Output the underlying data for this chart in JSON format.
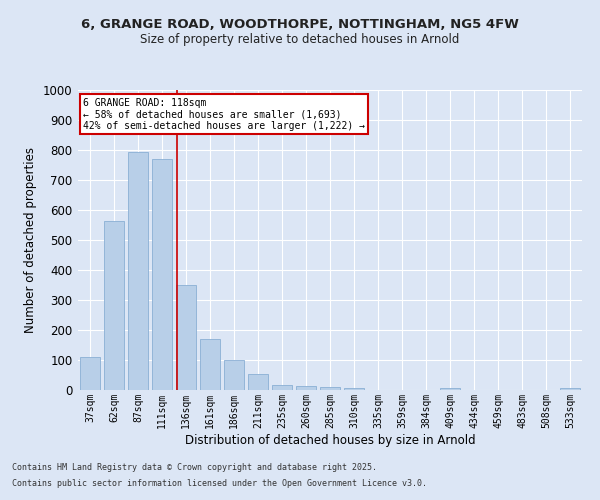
{
  "title1": "6, GRANGE ROAD, WOODTHORPE, NOTTINGHAM, NG5 4FW",
  "title2": "Size of property relative to detached houses in Arnold",
  "xlabel": "Distribution of detached houses by size in Arnold",
  "ylabel": "Number of detached properties",
  "categories": [
    "37sqm",
    "62sqm",
    "87sqm",
    "111sqm",
    "136sqm",
    "161sqm",
    "186sqm",
    "211sqm",
    "235sqm",
    "260sqm",
    "285sqm",
    "310sqm",
    "335sqm",
    "359sqm",
    "384sqm",
    "409sqm",
    "434sqm",
    "459sqm",
    "483sqm",
    "508sqm",
    "533sqm"
  ],
  "values": [
    110,
    565,
    795,
    770,
    350,
    170,
    100,
    55,
    18,
    13,
    10,
    8,
    0,
    0,
    0,
    8,
    0,
    0,
    0,
    0,
    8
  ],
  "bar_color": "#b8cfe8",
  "bar_edge_color": "#8aafd4",
  "background_color": "#dce6f5",
  "plot_bg_color": "#dce6f5",
  "grid_color": "#ffffff",
  "red_line_x": 3.62,
  "annotation_title": "6 GRANGE ROAD: 118sqm",
  "annotation_line1": "← 58% of detached houses are smaller (1,693)",
  "annotation_line2": "42% of semi-detached houses are larger (1,222) →",
  "annotation_box_color": "#ffffff",
  "annotation_box_edge": "#cc0000",
  "footer1": "Contains HM Land Registry data © Crown copyright and database right 2025.",
  "footer2": "Contains public sector information licensed under the Open Government Licence v3.0.",
  "ylim": [
    0,
    1000
  ],
  "yticks": [
    0,
    100,
    200,
    300,
    400,
    500,
    600,
    700,
    800,
    900,
    1000
  ]
}
